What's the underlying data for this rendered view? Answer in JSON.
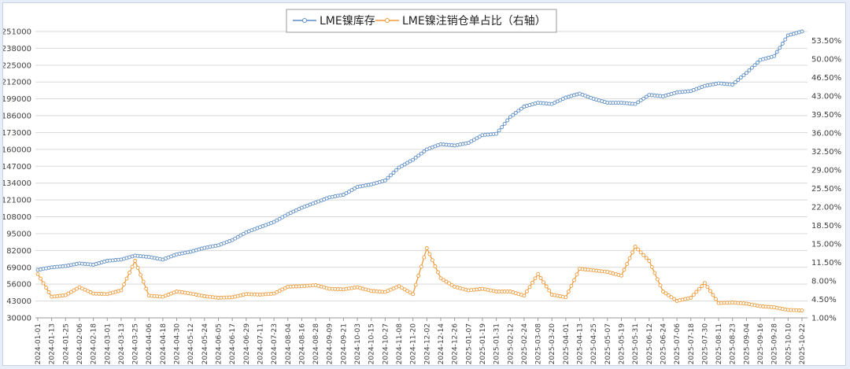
{
  "chart_data": {
    "type": "line",
    "title": "",
    "legend_position": "top-center",
    "grid": true,
    "y_left": {
      "ticks": [
        "30000",
        "43000",
        "56000",
        "69000",
        "82000",
        "95000",
        "108000",
        "121000",
        "134000",
        "147000",
        "160000",
        "173000",
        "186000",
        "199000",
        "212000",
        "225000",
        "238000",
        "251000"
      ],
      "min": 30000,
      "max": 251000
    },
    "y_right": {
      "ticks": [
        "1.00%",
        "4.50%",
        "8.00%",
        "11.50%",
        "15.00%",
        "18.50%",
        "22.00%",
        "25.50%",
        "29.00%",
        "32.50%",
        "36.00%",
        "39.50%",
        "43.00%",
        "46.50%",
        "50.00%",
        "53.50%"
      ],
      "min": 1.0,
      "max": 55.25
    },
    "x": [
      "2024-01-01",
      "2024-01-13",
      "2024-01-25",
      "2024-02-06",
      "2024-02-18",
      "2024-03-01",
      "2024-03-13",
      "2024-03-25",
      "2024-04-06",
      "2024-04-18",
      "2024-04-30",
      "2024-05-12",
      "2024-05-24",
      "2024-06-05",
      "2024-06-17",
      "2024-06-29",
      "2024-07-11",
      "2024-07-23",
      "2024-08-04",
      "2024-08-16",
      "2024-08-28",
      "2024-09-09",
      "2024-09-21",
      "2024-10-03",
      "2024-10-15",
      "2024-10-27",
      "2024-11-08",
      "2024-11-20",
      "2024-12-02",
      "2024-12-14",
      "2024-12-26",
      "2025-01-07",
      "2025-01-19",
      "2025-01-31",
      "2025-02-12",
      "2025-02-24",
      "2025-03-08",
      "2025-03-20",
      "2025-04-01",
      "2025-04-13",
      "2025-04-25",
      "2025-05-07",
      "2025-05-19",
      "2025-05-31",
      "2025-06-12",
      "2025-06-24",
      "2025-07-06",
      "2025-07-18",
      "2025-07-30",
      "2025-08-11",
      "2025-08-23",
      "2025-09-04",
      "2025-09-16",
      "2025-09-28",
      "2025-10-10",
      "2025-10-22"
    ],
    "series": [
      {
        "name": "LME镍库存",
        "axis": "left",
        "color": "#5b8cc5",
        "values": [
          67000,
          69000,
          70000,
          72000,
          71000,
          74000,
          75000,
          78000,
          77000,
          75000,
          79000,
          81000,
          84000,
          86000,
          90000,
          96000,
          100000,
          104000,
          110000,
          115000,
          119000,
          123000,
          125000,
          131000,
          133000,
          136000,
          146000,
          152000,
          160000,
          164000,
          163000,
          165000,
          171000,
          172000,
          185000,
          193000,
          196000,
          195000,
          200000,
          203000,
          199000,
          196000,
          196000,
          195000,
          202000,
          201000,
          204000,
          205000,
          209000,
          211000,
          210000,
          219000,
          229000,
          232000,
          248000,
          251000
        ]
      },
      {
        "name": "LME镍注销仓单占比（右轴）",
        "axis": "right",
        "color": "#ee9a3a",
        "values": [
          9.3,
          5.0,
          5.3,
          6.8,
          5.6,
          5.5,
          6.2,
          11.8,
          5.2,
          5.0,
          6.0,
          5.6,
          5.1,
          4.8,
          4.9,
          5.5,
          5.4,
          5.6,
          6.9,
          7.0,
          7.2,
          6.5,
          6.4,
          6.8,
          6.1,
          5.9,
          7.0,
          5.5,
          14.2,
          8.5,
          6.9,
          6.2,
          6.5,
          6.0,
          6.0,
          5.2,
          9.3,
          5.4,
          4.9,
          10.3,
          10.0,
          9.7,
          9.0,
          14.5,
          11.8,
          6.0,
          4.2,
          4.8,
          7.6,
          3.8,
          3.9,
          3.7,
          3.2,
          3.0,
          2.5,
          2.4
        ]
      }
    ]
  }
}
